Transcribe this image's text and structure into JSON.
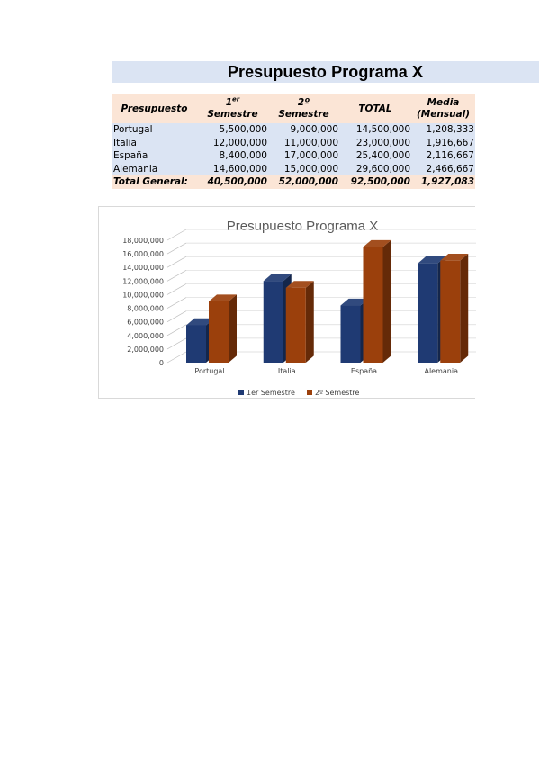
{
  "document": {
    "title": "Presupuesto Programa X"
  },
  "table": {
    "headers": {
      "presupuesto": "Presupuesto",
      "sem1_num": "1",
      "sem1_ord": "er",
      "sem1_word": "Semestre",
      "sem2_num": "2º",
      "sem2_word": "Semestre",
      "total": "TOTAL",
      "media_line1": "Media",
      "media_line2": "(Mensual)"
    },
    "rows": [
      {
        "pais": "Portugal",
        "sem1": "5,500,000",
        "sem2": "9,000,000",
        "total": "14,500,000",
        "media": "1,208,333"
      },
      {
        "pais": "Italia",
        "sem1": "12,000,000",
        "sem2": "11,000,000",
        "total": "23,000,000",
        "media": "1,916,667"
      },
      {
        "pais": "España",
        "sem1": "8,400,000",
        "sem2": "17,000,000",
        "total": "25,400,000",
        "media": "2,116,667"
      },
      {
        "pais": "Alemania",
        "sem1": "14,600,000",
        "sem2": "15,000,000",
        "total": "29,600,000",
        "media": "2,466,667"
      }
    ],
    "footer": {
      "label": "Total General:",
      "sem1": "40,500,000",
      "sem2": "52,000,000",
      "total": "92,500,000",
      "media": "1,927,083"
    }
  },
  "chart_data": {
    "type": "bar",
    "style": "3d-clustered-column",
    "title": "Presupuesto Programa X",
    "categories": [
      "Portugal",
      "Italia",
      "España",
      "Alemania"
    ],
    "series": [
      {
        "name": "1er Semestre",
        "values": [
          5500000,
          12000000,
          8400000,
          14600000
        ],
        "color": "#1f3a73"
      },
      {
        "name": "2º Semestre",
        "values": [
          9000000,
          11000000,
          17000000,
          15000000
        ],
        "color": "#9b400c"
      }
    ],
    "yticks": [
      "0",
      "2,000,000",
      "4,000,000",
      "6,000,000",
      "8,000,000",
      "10,000,000",
      "12,000,000",
      "14,000,000",
      "16,000,000",
      "18,000,000"
    ],
    "ylim": [
      0,
      18000000
    ],
    "ystep": 2000000,
    "grid": true,
    "legend_position": "bottom"
  }
}
